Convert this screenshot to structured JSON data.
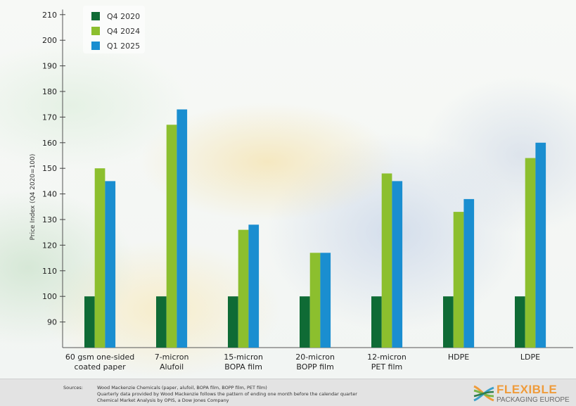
{
  "chart_data": {
    "type": "bar",
    "title": "",
    "xlabel": "",
    "ylabel": "Price Index (Q4 2020=100)",
    "ylim": [
      80,
      212
    ],
    "yticks": [
      90,
      100,
      110,
      120,
      130,
      140,
      150,
      160,
      170,
      180,
      190,
      200,
      210
    ],
    "grid": false,
    "legend_position": "top-left",
    "categories": [
      [
        "60 gsm one-sided",
        "coated paper"
      ],
      [
        "7-micron",
        "Alufoil"
      ],
      [
        "15-micron",
        "BOPA film"
      ],
      [
        "20-micron",
        "BOPP film"
      ],
      [
        "12-micron",
        "PET film"
      ],
      [
        "HDPE"
      ],
      [
        "LDPE"
      ]
    ],
    "series": [
      {
        "name": "Q4 2020",
        "color": "#0f6b35",
        "values": [
          100,
          100,
          100,
          100,
          100,
          100,
          100
        ]
      },
      {
        "name": "Q4 2024",
        "color": "#8cbf2e",
        "values": [
          150,
          167,
          126,
          117,
          148,
          133,
          154
        ]
      },
      {
        "name": "Q1 2025",
        "color": "#1a8ed0",
        "values": [
          145,
          173,
          128,
          117,
          145,
          138,
          160
        ]
      }
    ]
  },
  "footer": {
    "sources_label": "Sources:",
    "sources_lines": [
      "Wood Mackenzie Chemicals (paper, alufoil, BOPA film, BOPP film, PET film)",
      "Quarterly data provided by Wood Mackenzie follows the pattern of ending one month before the calendar quarter",
      "Chemical Market Analysis by OPIS, a Dow Jones Company"
    ]
  },
  "logo": {
    "word1": "FLEXIBLE",
    "word2": "PACKAGING EUROPE",
    "colors": {
      "orange": "#ef9b3a",
      "green": "#7ab648",
      "blue": "#3aa0c8",
      "grey": "#6b6b6b"
    }
  }
}
